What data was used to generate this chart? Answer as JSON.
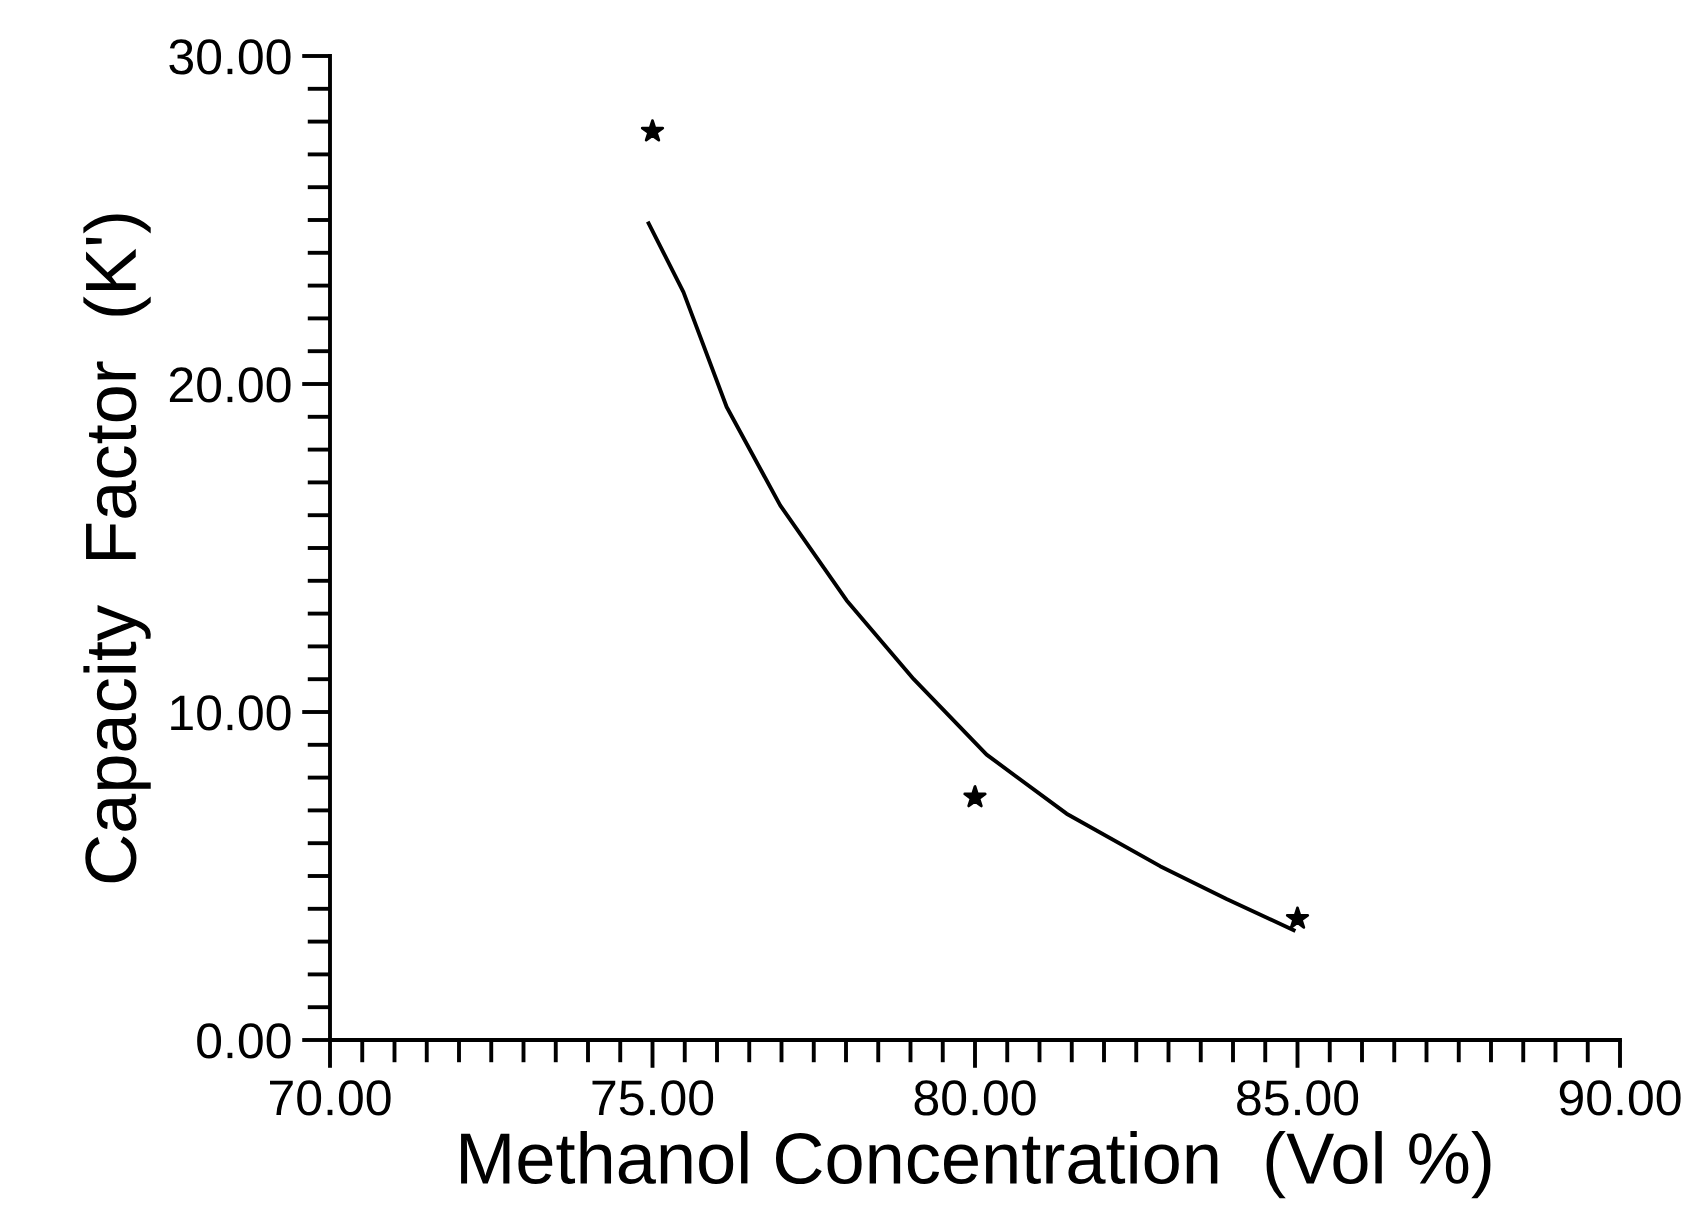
{
  "chart_data": {
    "type": "scatter",
    "xlabel": "Methanol Concentration  (Vol %)",
    "ylabel": "Capacity  Factor  (K')",
    "series": [
      {
        "type": "scatter",
        "color": "#000000",
        "marker": "star",
        "x": [
          75.0,
          80.0,
          85.0
        ],
        "values": [
          27.7,
          7.4,
          3.7
        ]
      },
      {
        "type": "line",
        "color": "#000000",
        "marker": "none",
        "line_style": "solid",
        "x": [
          74.94,
          75.48,
          76.15,
          76.98,
          78.01,
          79.05,
          80.18,
          81.42,
          82.87,
          83.9,
          84.94
        ],
        "values": [
          24.9,
          22.8,
          19.3,
          16.3,
          13.4,
          11.0,
          8.7,
          6.9,
          5.3,
          4.3,
          3.35
        ]
      }
    ],
    "xlim": [
      70,
      90
    ],
    "ylim": [
      0,
      30
    ],
    "xticks": [
      {
        "value": 70,
        "label": "70.00"
      },
      {
        "value": 70.5,
        "label": null
      },
      {
        "value": 71,
        "label": null
      },
      {
        "value": 71.5,
        "label": null
      },
      {
        "value": 72,
        "label": null
      },
      {
        "value": 72.5,
        "label": null
      },
      {
        "value": 73,
        "label": null
      },
      {
        "value": 73.5,
        "label": null
      },
      {
        "value": 74,
        "label": null
      },
      {
        "value": 74.5,
        "label": null
      },
      {
        "value": 75,
        "label": "75.00"
      },
      {
        "value": 75.5,
        "label": null
      },
      {
        "value": 76,
        "label": null
      },
      {
        "value": 76.5,
        "label": null
      },
      {
        "value": 77,
        "label": null
      },
      {
        "value": 77.5,
        "label": null
      },
      {
        "value": 78,
        "label": null
      },
      {
        "value": 78.5,
        "label": null
      },
      {
        "value": 79,
        "label": null
      },
      {
        "value": 79.5,
        "label": null
      },
      {
        "value": 80,
        "label": "80.00"
      },
      {
        "value": 80.5,
        "label": null
      },
      {
        "value": 81,
        "label": null
      },
      {
        "value": 81.5,
        "label": null
      },
      {
        "value": 82,
        "label": null
      },
      {
        "value": 82.5,
        "label": null
      },
      {
        "value": 83,
        "label": null
      },
      {
        "value": 83.5,
        "label": null
      },
      {
        "value": 84,
        "label": null
      },
      {
        "value": 84.5,
        "label": null
      },
      {
        "value": 85,
        "label": "85.00"
      },
      {
        "value": 85.5,
        "label": null
      },
      {
        "value": 86,
        "label": null
      },
      {
        "value": 86.5,
        "label": null
      },
      {
        "value": 87,
        "label": null
      },
      {
        "value": 87.5,
        "label": null
      },
      {
        "value": 88,
        "label": null
      },
      {
        "value": 88.5,
        "label": null
      },
      {
        "value": 89,
        "label": null
      },
      {
        "value": 89.5,
        "label": null
      },
      {
        "value": 90,
        "label": "90.00"
      }
    ],
    "yticks": [
      {
        "value": 0,
        "label": "0.00"
      },
      {
        "value": 1,
        "label": null
      },
      {
        "value": 2,
        "label": null
      },
      {
        "value": 3,
        "label": null
      },
      {
        "value": 4,
        "label": null
      },
      {
        "value": 5,
        "label": null
      },
      {
        "value": 6,
        "label": null
      },
      {
        "value": 7,
        "label": null
      },
      {
        "value": 8,
        "label": null
      },
      {
        "value": 9,
        "label": null
      },
      {
        "value": 10,
        "label": "10.00"
      },
      {
        "value": 11,
        "label": null
      },
      {
        "value": 12,
        "label": null
      },
      {
        "value": 13,
        "label": null
      },
      {
        "value": 14,
        "label": null
      },
      {
        "value": 15,
        "label": null
      },
      {
        "value": 16,
        "label": null
      },
      {
        "value": 17,
        "label": null
      },
      {
        "value": 18,
        "label": null
      },
      {
        "value": 19,
        "label": null
      },
      {
        "value": 20,
        "label": "20.00"
      },
      {
        "value": 21,
        "label": null
      },
      {
        "value": 22,
        "label": null
      },
      {
        "value": 23,
        "label": null
      },
      {
        "value": 24,
        "label": null
      },
      {
        "value": 25,
        "label": null
      },
      {
        "value": 26,
        "label": null
      },
      {
        "value": 27,
        "label": null
      },
      {
        "value": 28,
        "label": null
      },
      {
        "value": 29,
        "label": null
      },
      {
        "value": 30,
        "label": "30.00"
      }
    ],
    "grid": false,
    "legend": false
  }
}
